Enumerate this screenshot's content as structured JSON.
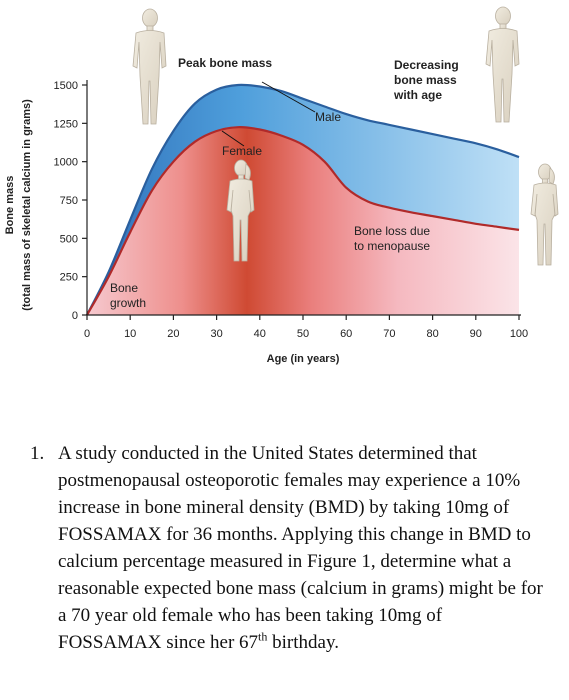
{
  "chart_data": {
    "type": "area",
    "xlabel": "Age (in years)",
    "ylabel_line1": "Bone mass",
    "ylabel_line2": "(total mass of skeletal calcium in grams)",
    "xlim": [
      0,
      100
    ],
    "ylim": [
      0,
      1500
    ],
    "xticks": [
      0,
      10,
      20,
      30,
      40,
      50,
      60,
      70,
      80,
      90,
      100
    ],
    "yticks": [
      0,
      250,
      500,
      750,
      1000,
      1250,
      1500
    ],
    "grid": false,
    "series": [
      {
        "name": "Male",
        "color": "#3a7fc7",
        "x": [
          0,
          5,
          10,
          15,
          20,
          25,
          30,
          35,
          40,
          45,
          50,
          55,
          60,
          65,
          70,
          75,
          80,
          85,
          90,
          95,
          100
        ],
        "y": [
          0,
          280,
          620,
          950,
          1200,
          1380,
          1470,
          1500,
          1490,
          1460,
          1410,
          1360,
          1310,
          1270,
          1240,
          1210,
          1180,
          1150,
          1120,
          1080,
          1030
        ]
      },
      {
        "name": "Female",
        "color": "#c0352f",
        "x": [
          0,
          5,
          10,
          15,
          20,
          25,
          30,
          35,
          40,
          45,
          50,
          55,
          60,
          65,
          70,
          75,
          80,
          85,
          90,
          95,
          100
        ],
        "y": [
          0,
          250,
          540,
          810,
          1000,
          1130,
          1200,
          1225,
          1210,
          1170,
          1110,
          1000,
          830,
          740,
          700,
          670,
          645,
          620,
          595,
          575,
          555
        ]
      }
    ],
    "annotations": {
      "peak": "Peak bone mass",
      "decreasing_1": "Decreasing",
      "decreasing_2": "bone mass",
      "decreasing_3": "with age",
      "male": "Male",
      "female": "Female",
      "loss_1": "Bone loss due",
      "loss_2": "to menopause",
      "growth_1": "Bone",
      "growth_2": "growth"
    }
  },
  "question": {
    "number": "1.",
    "text": "A study conducted in the United States determined that postmenopausal osteoporotic females may experience a 10% increase in bone mineral density (BMD) by taking 10mg of FOSSAMAX for 36 months.  Applying this change in BMD to calcium percentage measured in Figure 1, determine what a reasonable expected bone mass (calcium in grams) might be for a 70 year old female who has been taking 10mg of FOSSAMAX since her 67",
    "superscript": "th",
    "ending": " birthday."
  },
  "colors": {
    "male_fill_light": "#c8e2f6",
    "male_fill_dark": "#4a9ad8",
    "female_fill_light": "#f7c7cd",
    "female_fill_dark": "#c94a35",
    "figure_skin": "#e8e2d4",
    "figure_edge": "#b9b0a0"
  }
}
